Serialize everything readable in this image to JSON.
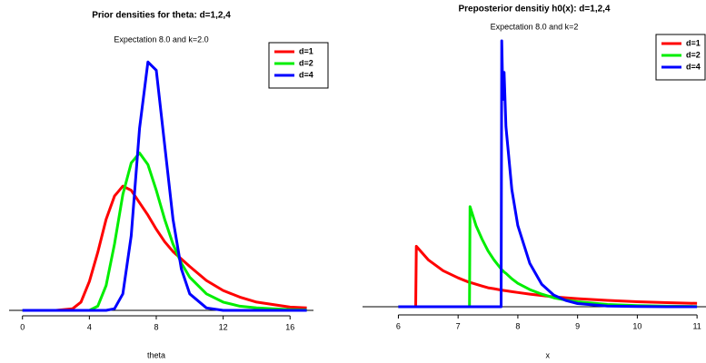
{
  "chart_data": [
    {
      "type": "line",
      "title": "Prior densities for theta: d=1,2,4",
      "subtitle": "Expectation 8.0 and k=2.0",
      "x_label": "theta",
      "x": [
        0,
        1,
        2,
        3,
        3.5,
        4,
        4.5,
        5,
        5.5,
        6,
        6.5,
        7,
        7.5,
        8,
        8.5,
        9,
        9.5,
        10,
        11,
        12,
        13,
        14,
        15,
        16,
        17
      ],
      "series": [
        {
          "name": "d=1",
          "color": "#ff0000",
          "values": [
            0,
            0,
            0,
            0.002,
            0.01,
            0.035,
            0.07,
            0.11,
            0.138,
            0.15,
            0.145,
            0.13,
            0.115,
            0.098,
            0.083,
            0.071,
            0.062,
            0.053,
            0.036,
            0.024,
            0.016,
            0.01,
            0.007,
            0.004,
            0.003
          ]
        },
        {
          "name": "d=2",
          "color": "#00ee00",
          "values": [
            0,
            0,
            0,
            0,
            0,
            0,
            0.005,
            0.03,
            0.08,
            0.14,
            0.178,
            0.19,
            0.176,
            0.145,
            0.11,
            0.08,
            0.057,
            0.04,
            0.02,
            0.01,
            0.005,
            0.003,
            0.002,
            0.001,
            0.0005
          ]
        },
        {
          "name": "d=4",
          "color": "#0000ff",
          "values": [
            0,
            0,
            0,
            0,
            0,
            0,
            0,
            0,
            0.002,
            0.02,
            0.09,
            0.22,
            0.3,
            0.29,
            0.2,
            0.11,
            0.05,
            0.02,
            0.003,
            0,
            0,
            0,
            0,
            0,
            0
          ]
        }
      ],
      "xlim": [
        -0.8,
        17.4
      ],
      "xticks": [
        0,
        4,
        8,
        12,
        16
      ],
      "ylim": [
        0,
        0.32
      ],
      "legend": "topright"
    },
    {
      "type": "line",
      "title": "Preposterior densitiy h0(x): d=1,2,4",
      "subtitle": "Expectation 8.0 and k=2",
      "x_label": "x",
      "x": [
        6,
        6.29,
        6.3,
        6.5,
        6.75,
        7,
        7.19,
        7.2,
        7.3,
        7.4,
        7.5,
        7.6,
        7.72,
        7.73,
        7.75,
        7.77,
        7.8,
        7.9,
        8,
        8.2,
        8.4,
        8.6,
        8.8,
        9,
        9.5,
        10,
        10.5,
        11
      ],
      "series": [
        {
          "name": "d=1",
          "color": "#ff0000",
          "values": [
            0,
            0,
            0.67,
            0.52,
            0.4,
            0.32,
            0.27,
            0.27,
            0.25,
            0.23,
            0.21,
            0.2,
            0.185,
            0.184,
            0.182,
            0.18,
            0.177,
            0.167,
            0.158,
            0.14,
            0.125,
            0.11,
            0.1,
            0.09,
            0.07,
            0.055,
            0.045,
            0.037
          ]
        },
        {
          "name": "d=2",
          "color": "#00ee00",
          "values": [
            0,
            0,
            0,
            0,
            0,
            0,
            0,
            1.11,
            0.9,
            0.75,
            0.62,
            0.52,
            0.42,
            0.41,
            0.4,
            0.385,
            0.37,
            0.31,
            0.26,
            0.19,
            0.14,
            0.1,
            0.075,
            0.055,
            0.025,
            0.012,
            0.006,
            0.003
          ]
        },
        {
          "name": "d=4",
          "color": "#0000ff",
          "values": [
            0,
            0,
            0,
            0,
            0,
            0,
            0,
            0,
            0,
            0,
            0,
            0,
            0,
            2.95,
            2.3,
            2.6,
            2.0,
            1.3,
            0.9,
            0.48,
            0.25,
            0.13,
            0.07,
            0.035,
            0.008,
            0.002,
            0,
            0
          ]
        }
      ],
      "xlim": [
        5.4,
        11.15
      ],
      "xticks": [
        6,
        7,
        8,
        9,
        10,
        11
      ],
      "ylim": [
        0,
        3
      ],
      "legend": "topright"
    }
  ]
}
